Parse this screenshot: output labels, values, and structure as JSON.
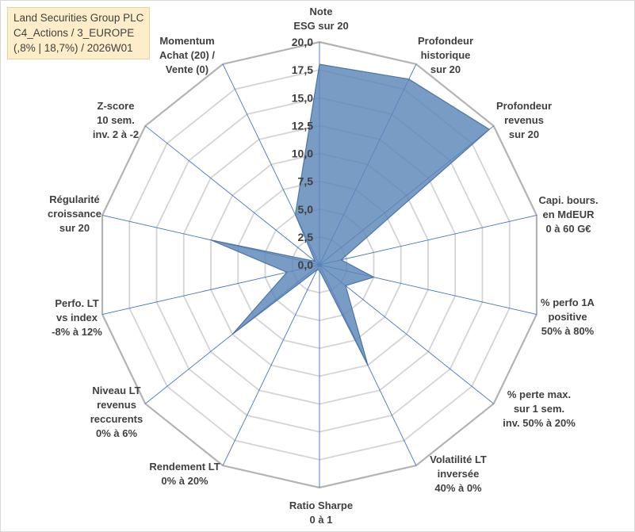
{
  "chart_title": {
    "line1": "Land Securities Group PLC",
    "line2": "C4_Actions / 3_EUROPE",
    "line3": "(,8% | 18,7%) / 2026W01"
  },
  "colors": {
    "fill": "#5b86b8",
    "stroke": "#4a74a8",
    "grid": "#c0c0c0",
    "spoke": "#4472c4",
    "title_bg": "#fdeec9",
    "text": "#404040"
  },
  "chart_data": {
    "type": "radar",
    "title": "Land Securities Group PLC / C4_Actions / 3_EUROPE / (,8% | 18,7%) / 2026W01",
    "rlim": [
      0,
      20
    ],
    "tick_step": 2.5,
    "tick_labels": [
      "0,0",
      "2,5",
      "5,0",
      "7,5",
      "10,0",
      "12,5",
      "15,0",
      "17,5",
      "20,0"
    ],
    "axes": [
      {
        "label": [
          "Note",
          "ESG sur 20"
        ]
      },
      {
        "label": [
          "Profondeur",
          "historique",
          "sur 20"
        ]
      },
      {
        "label": [
          "Profondeur",
          "revenus",
          "sur 20"
        ]
      },
      {
        "label": [
          "Capi. bours.",
          "en MdEUR",
          "0 à 60 G€"
        ]
      },
      {
        "label": [
          "% perfo 1A",
          "positive",
          "50% à 80%"
        ]
      },
      {
        "label": [
          "% perte max.",
          "sur 1 sem.",
          "inv. 50% à 20%"
        ]
      },
      {
        "label": [
          "Volatilité LT",
          "inversée",
          "40% à 0%"
        ]
      },
      {
        "label": [
          "Ratio Sharpe",
          "0 à 1"
        ]
      },
      {
        "label": [
          "Rendement LT",
          "0% à 20%"
        ]
      },
      {
        "label": [
          "Niveau LT",
          "revenus",
          "reccurents",
          "0% à 6%"
        ]
      },
      {
        "label": [
          "Perfo. LT",
          "vs index",
          "-8% à 12%"
        ]
      },
      {
        "label": [
          "Régularité",
          "croissance",
          "sur 20"
        ]
      },
      {
        "label": [
          "Z-score",
          "10 sem.",
          "inv. 2 à -2"
        ]
      },
      {
        "label": [
          "Momentum",
          "Achat (20) /",
          "Vente (0)"
        ]
      }
    ],
    "series": [
      {
        "name": "Land Securities Group PLC",
        "values": [
          18,
          18.5,
          19.5,
          2.0,
          5.0,
          3.0,
          10.0,
          0.5,
          0.5,
          10.0,
          3.0,
          10.0,
          0.5,
          5.0
        ]
      }
    ]
  }
}
